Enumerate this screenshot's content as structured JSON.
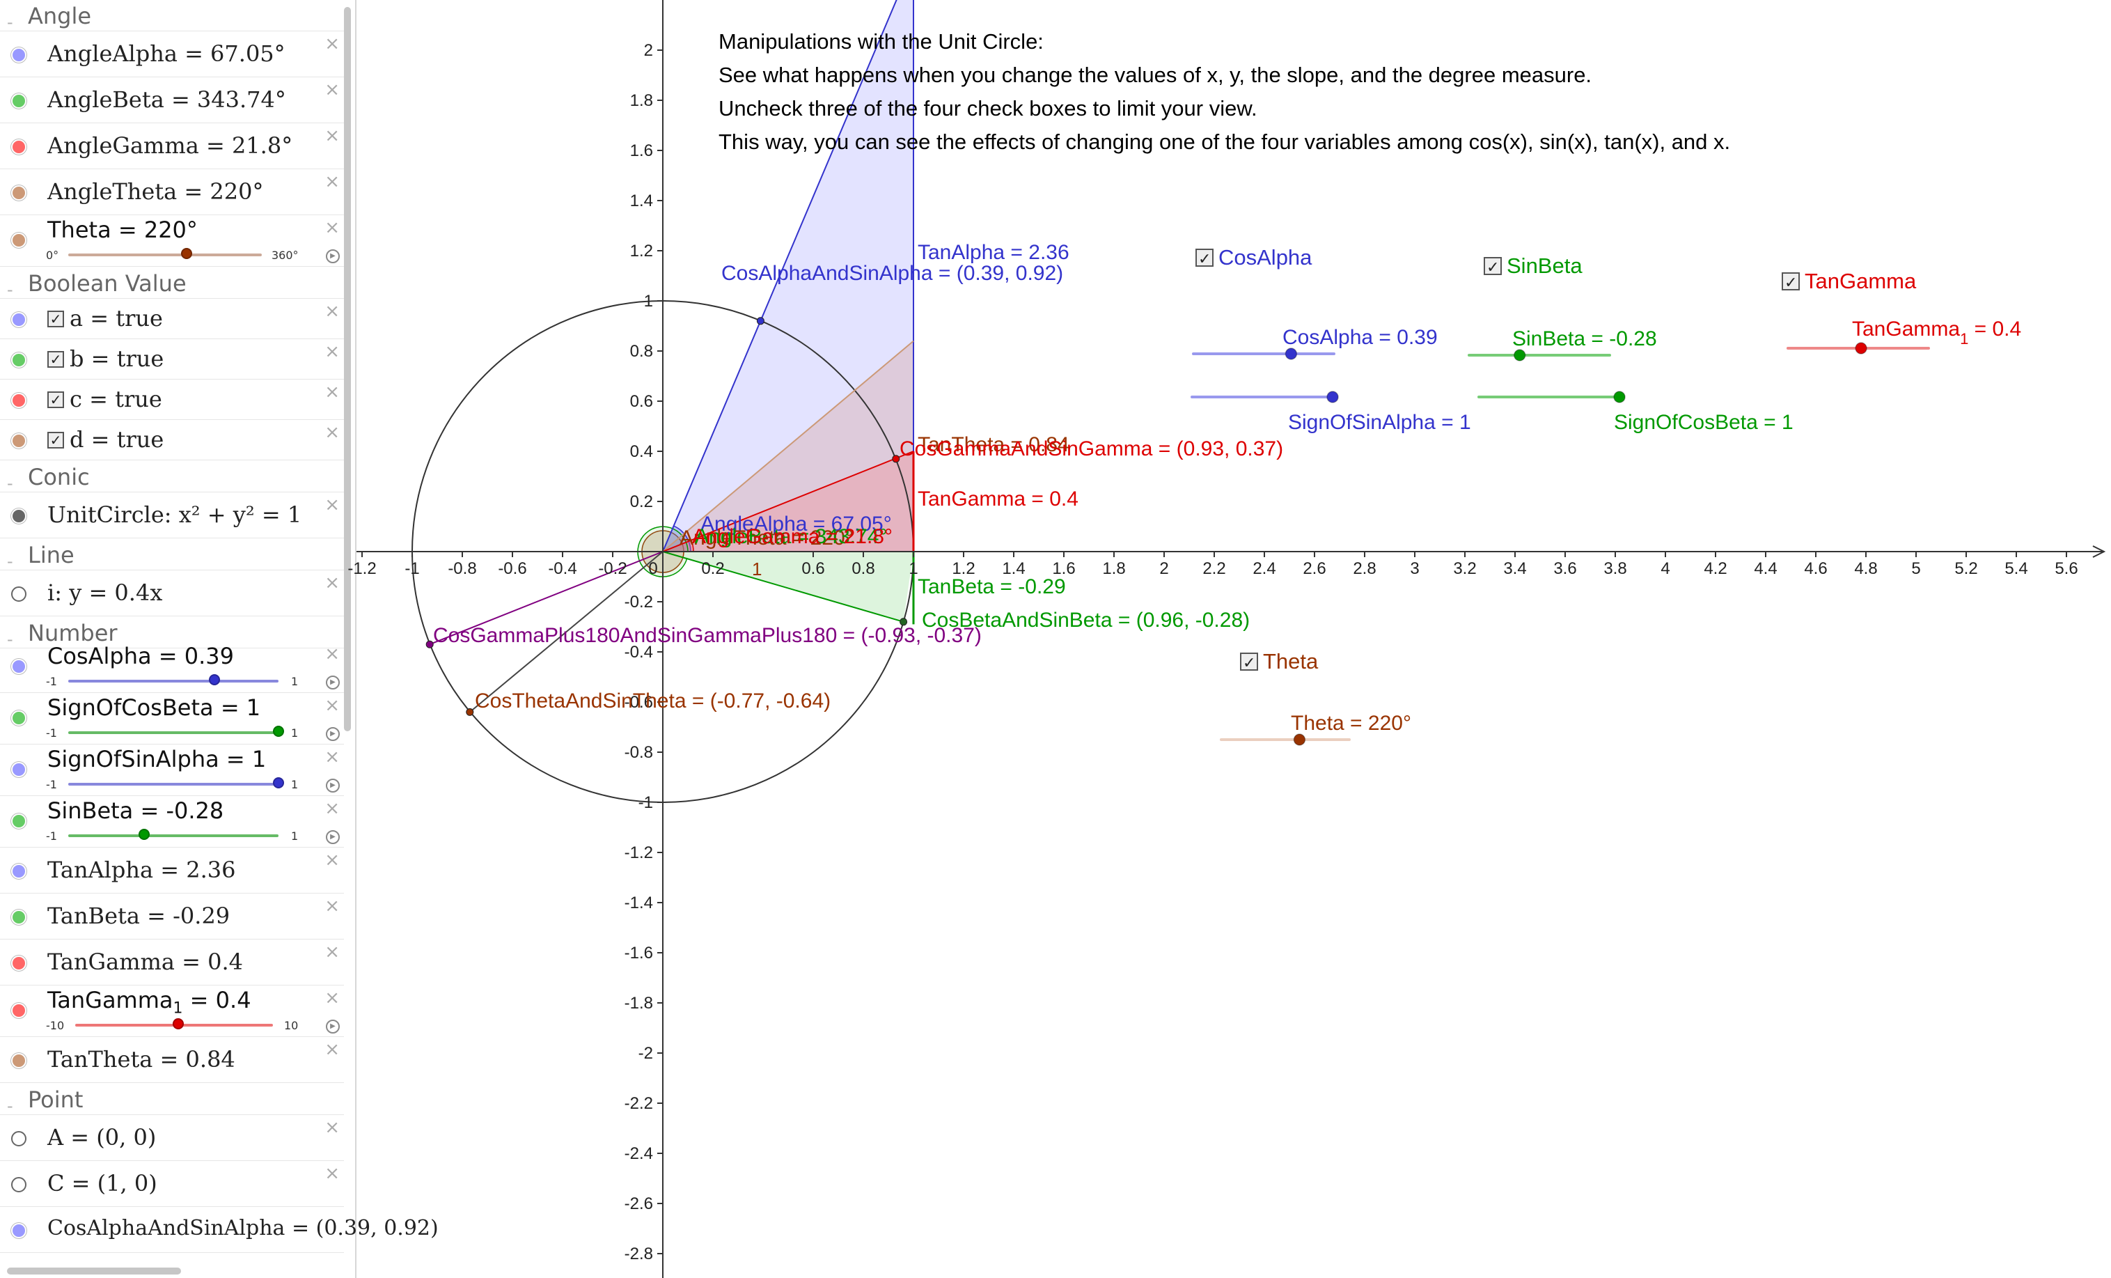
{
  "algebra": {
    "sections": {
      "angle": "Angle",
      "boolean": "Boolean Value",
      "conic": "Conic",
      "line": "Line",
      "number": "Number",
      "point": "Point"
    },
    "rows": {
      "anglealpha": "AngleAlpha = 67.05°",
      "anglebeta": "AngleBeta = 343.74°",
      "anglegamma": "AngleGamma = 21.8°",
      "angletheta": "AngleTheta = 220°",
      "theta": "Theta = 220°",
      "a": "a = true",
      "b": "b = true",
      "c": "c = true",
      "d": "d = true",
      "unitcircle": "UnitCircle: x² + y² = 1",
      "line_i": "i: y = 0.4x",
      "cosalpha": "CosAlpha = 0.39",
      "signofcosbeta": "SignOfCosBeta = 1",
      "signofsinalpha": "SignOfSinAlpha = 1",
      "sinbeta": "SinBeta = -0.28",
      "tanalpha": "TanAlpha = 2.36",
      "tanbeta": "TanBeta = -0.29",
      "tangamma": "TanGamma = 0.4",
      "tangamma1_name": "TanGamma",
      "tangamma1_sub": "1",
      "tangamma1_val": " = 0.4",
      "tantheta": "TanTheta = 0.84",
      "point_a": "A = (0, 0)",
      "point_c": "C = (1, 0)",
      "cosalphaandsinalpha": "CosAlphaAndSinAlpha = (0.39, 0.92)"
    },
    "slider_ranges": {
      "theta": {
        "min": "0°",
        "max": "360°",
        "value": 220,
        "lo": 0,
        "hi": 360
      },
      "cosalpha": {
        "min": "-1",
        "max": "1",
        "value": 0.39,
        "lo": -1,
        "hi": 1
      },
      "signofcosbeta": {
        "min": "-1",
        "max": "1",
        "value": 1,
        "lo": -1,
        "hi": 1
      },
      "signofsinalpha": {
        "min": "-1",
        "max": "1",
        "value": 1,
        "lo": -1,
        "hi": 1
      },
      "sinbeta": {
        "min": "-1",
        "max": "1",
        "value": -0.28,
        "lo": -1,
        "hi": 1
      },
      "tangamma1": {
        "min": "-10",
        "max": "10",
        "value": 0.4,
        "lo": -10,
        "hi": 10
      }
    },
    "check": "✓",
    "close": "×",
    "play": "▶"
  },
  "instructions": [
    "Manipulations with the Unit Circle:",
    "See what happens when you change the values of x, y, the slope, and the degree measure.",
    "Uncheck three of the four check boxes to limit your view.",
    "This way, you can see the effects of changing one of the four variables among cos(x), sin(x), tan(x), and x."
  ],
  "graph": {
    "x_ticks": [
      "-1.2",
      "-1",
      "-0.8",
      "-0.6",
      "-0.4",
      "-0.2",
      "0",
      "0.2",
      "0.6",
      "0.8",
      "1",
      "1.2",
      "1.4",
      "1.6",
      "1.8",
      "2",
      "2.2",
      "2.4",
      "2.6",
      "2.8",
      "3",
      "3.2",
      "3.4",
      "3.6",
      "3.8",
      "4",
      "4.2",
      "4.4",
      "4.6",
      "4.8",
      "5",
      "5.2",
      "5.4",
      "5.6"
    ],
    "y_ticks": [
      "2",
      "1.8",
      "1.6",
      "1.4",
      "1.2",
      "1",
      "0.8",
      "0.6",
      "0.4",
      "0.2",
      "-0.2",
      "-0.4",
      "-0.6",
      "-0.8",
      "-1",
      "-1.2",
      "-1.4",
      "-1.6",
      "-1.8",
      "-2",
      "-2.2",
      "-2.4",
      "-2.6",
      "-2.8"
    ],
    "labels": {
      "tanalpha": "TanAlpha = 2.36",
      "cosalphaandsinalpha": "CosAlphaAndSinAlpha = (0.39, 0.92)",
      "tantheta": "TanTheta = 0.84",
      "cosgammaandsingamma": "CosGammaAndSinGamma = (0.93, 0.37)",
      "tangamma": "TanGamma = 0.4",
      "anglealpha": "AngleAlpha = 67.05°",
      "angletheta_overlap": "AngleTheta = 220°",
      "anglegamma_overlap": "AngleGamma = 21.8°",
      "anglebeta_overlap": "AngleBeta = 343.74°",
      "tanbeta": "TanBeta = -0.29",
      "cosbetaandsinbeta": "CosBetaAndSinBeta = (0.96, -0.28)",
      "cosgammaplus180": "CosGammaPlus180AndSinGammaPlus180 = (-0.93, -0.37)",
      "costhetaandsintheta": "CosThetaAndSinTheta = (-0.77, -0.64)",
      "one": "1"
    },
    "controls": {
      "cb_cosalpha": "CosAlpha",
      "cb_sinbeta": "SinBeta",
      "cb_tangamma": "TanGamma",
      "cb_theta": "Theta",
      "sl_cosalpha": "CosAlpha = 0.39",
      "sl_signofsinalpha": "SignOfSinAlpha = 1",
      "sl_sinbeta": "SinBeta = -0.28",
      "sl_signofcosbeta": "SignOfCosBeta = 1",
      "sl_tangamma1_name": "TanGamma",
      "sl_tangamma1_sub": "1",
      "sl_tangamma1_val": " = 0.4",
      "sl_theta": "Theta = 220°"
    }
  },
  "colors": {
    "blue": "#3333cc",
    "green": "#009900",
    "red": "#dd0000",
    "brown": "#993300",
    "purple": "#800080",
    "dot_blue": "#9999ff",
    "dot_green": "#66cc66",
    "dot_red": "#ff6666",
    "dot_brown": "#cc9977",
    "dot_gray": "#666666"
  }
}
